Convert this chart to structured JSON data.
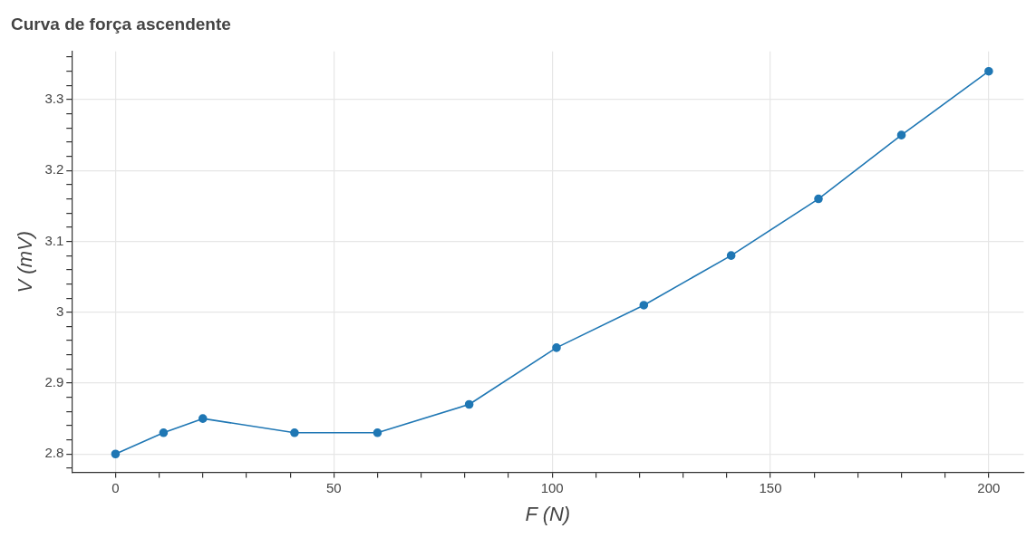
{
  "chart_data": {
    "type": "line",
    "title": "Curva de força ascendente",
    "xlabel": "F (N)",
    "ylabel": "V (mV)",
    "x": [
      0,
      11,
      20,
      41,
      60,
      81,
      101,
      121,
      141,
      161,
      180,
      200
    ],
    "series": [
      {
        "color": "#1f77b4",
        "values": [
          2.8,
          2.83,
          2.85,
          2.83,
          2.83,
          2.87,
          2.95,
          3.01,
          3.08,
          3.16,
          3.25,
          3.34
        ]
      }
    ],
    "xlim": [
      -10,
      208
    ],
    "ylim": [
      2.774,
      3.368
    ],
    "xticks": [
      0,
      {
        "value": 10,
        "label": null
      },
      {
        "value": 20,
        "label": null
      },
      {
        "value": 30,
        "label": null
      },
      {
        "value": 40,
        "label": null
      },
      50,
      {
        "value": 60,
        "label": null
      },
      {
        "value": 70,
        "label": null
      },
      {
        "value": 80,
        "label": null
      },
      {
        "value": 90,
        "label": null
      },
      100,
      {
        "value": 110,
        "label": null
      },
      {
        "value": 120,
        "label": null
      },
      {
        "value": 130,
        "label": null
      },
      {
        "value": 140,
        "label": null
      },
      150,
      {
        "value": 160,
        "label": null
      },
      {
        "value": 170,
        "label": null
      },
      {
        "value": 180,
        "label": null
      },
      {
        "value": 190,
        "label": null
      },
      200
    ],
    "yticks": [
      {
        "value": 2.78,
        "label": null
      },
      2.8,
      {
        "value": 2.82,
        "label": null
      },
      {
        "value": 2.84,
        "label": null
      },
      {
        "value": 2.86,
        "label": null
      },
      {
        "value": 2.88,
        "label": null
      },
      2.9,
      {
        "value": 2.92,
        "label": null
      },
      {
        "value": 2.94,
        "label": null
      },
      {
        "value": 2.96,
        "label": null
      },
      {
        "value": 2.98,
        "label": null
      },
      3,
      {
        "value": 3.02,
        "label": null
      },
      {
        "value": 3.04,
        "label": null
      },
      {
        "value": 3.06,
        "label": null
      },
      {
        "value": 3.08,
        "label": null
      },
      3.1,
      {
        "value": 3.12,
        "label": null
      },
      {
        "value": 3.14,
        "label": null
      },
      {
        "value": 3.16,
        "label": null
      },
      {
        "value": 3.18,
        "label": null
      },
      3.2,
      {
        "value": 3.22,
        "label": null
      },
      {
        "value": 3.24,
        "label": null
      },
      {
        "value": 3.26,
        "label": null
      },
      {
        "value": 3.28,
        "label": null
      },
      3.3,
      {
        "value": 3.32,
        "label": null
      },
      {
        "value": 3.34,
        "label": null
      },
      {
        "value": 3.36,
        "label": null
      }
    ],
    "grid": true,
    "marker": "circle",
    "line_style": "solid",
    "legend": false
  }
}
